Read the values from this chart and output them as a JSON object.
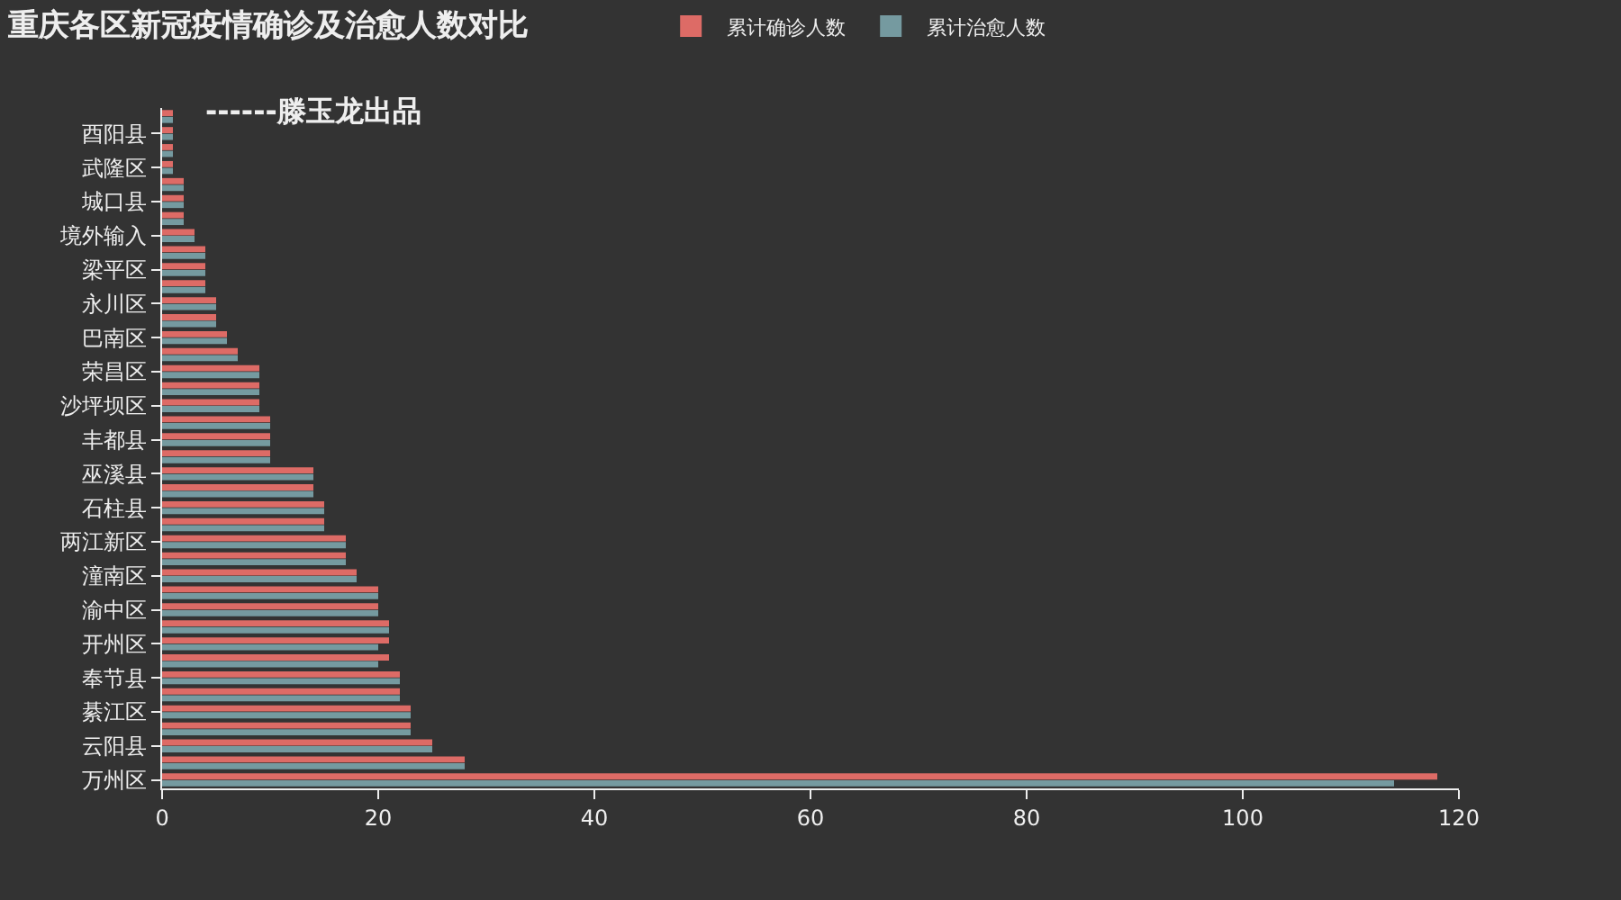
{
  "chart_data": {
    "type": "bar",
    "orientation": "horizontal",
    "title": "重庆各区新冠疫情确诊及治愈人数对比",
    "subtitle": "------滕玉龙出品",
    "categories": [
      null,
      "酉阳县",
      null,
      "武隆区",
      null,
      "城口县",
      null,
      "境外输入",
      null,
      "梁平区",
      null,
      "永川区",
      null,
      "巴南区",
      null,
      "荣昌区",
      null,
      "沙坪坝区",
      null,
      "丰都县",
      null,
      "巫溪县",
      null,
      "石柱县",
      null,
      "两江新区",
      null,
      "潼南区",
      null,
      "渝中区",
      null,
      "开州区",
      null,
      "奉节县",
      null,
      "綦江区",
      null,
      "云阳县",
      null,
      "万州区"
    ],
    "series": [
      {
        "name": "累计确诊人数",
        "color": "#dd6b66",
        "values": [
          1,
          1,
          1,
          1,
          2,
          2,
          2,
          3,
          4,
          4,
          4,
          5,
          5,
          6,
          7,
          9,
          9,
          9,
          10,
          10,
          10,
          14,
          14,
          15,
          15,
          17,
          17,
          18,
          20,
          20,
          21,
          21,
          21,
          22,
          22,
          23,
          23,
          25,
          28,
          118
        ]
      },
      {
        "name": "累计治愈人数",
        "color": "#759aa0",
        "values": [
          1,
          1,
          1,
          1,
          2,
          2,
          2,
          3,
          4,
          4,
          4,
          5,
          5,
          6,
          7,
          9,
          9,
          9,
          10,
          10,
          10,
          14,
          14,
          15,
          15,
          17,
          17,
          18,
          20,
          20,
          21,
          20,
          20,
          22,
          22,
          23,
          23,
          25,
          28,
          114
        ]
      }
    ],
    "xlim": [
      0,
      120
    ],
    "xticks": [
      0,
      20,
      40,
      60,
      80,
      100,
      120
    ],
    "legend": "top"
  }
}
